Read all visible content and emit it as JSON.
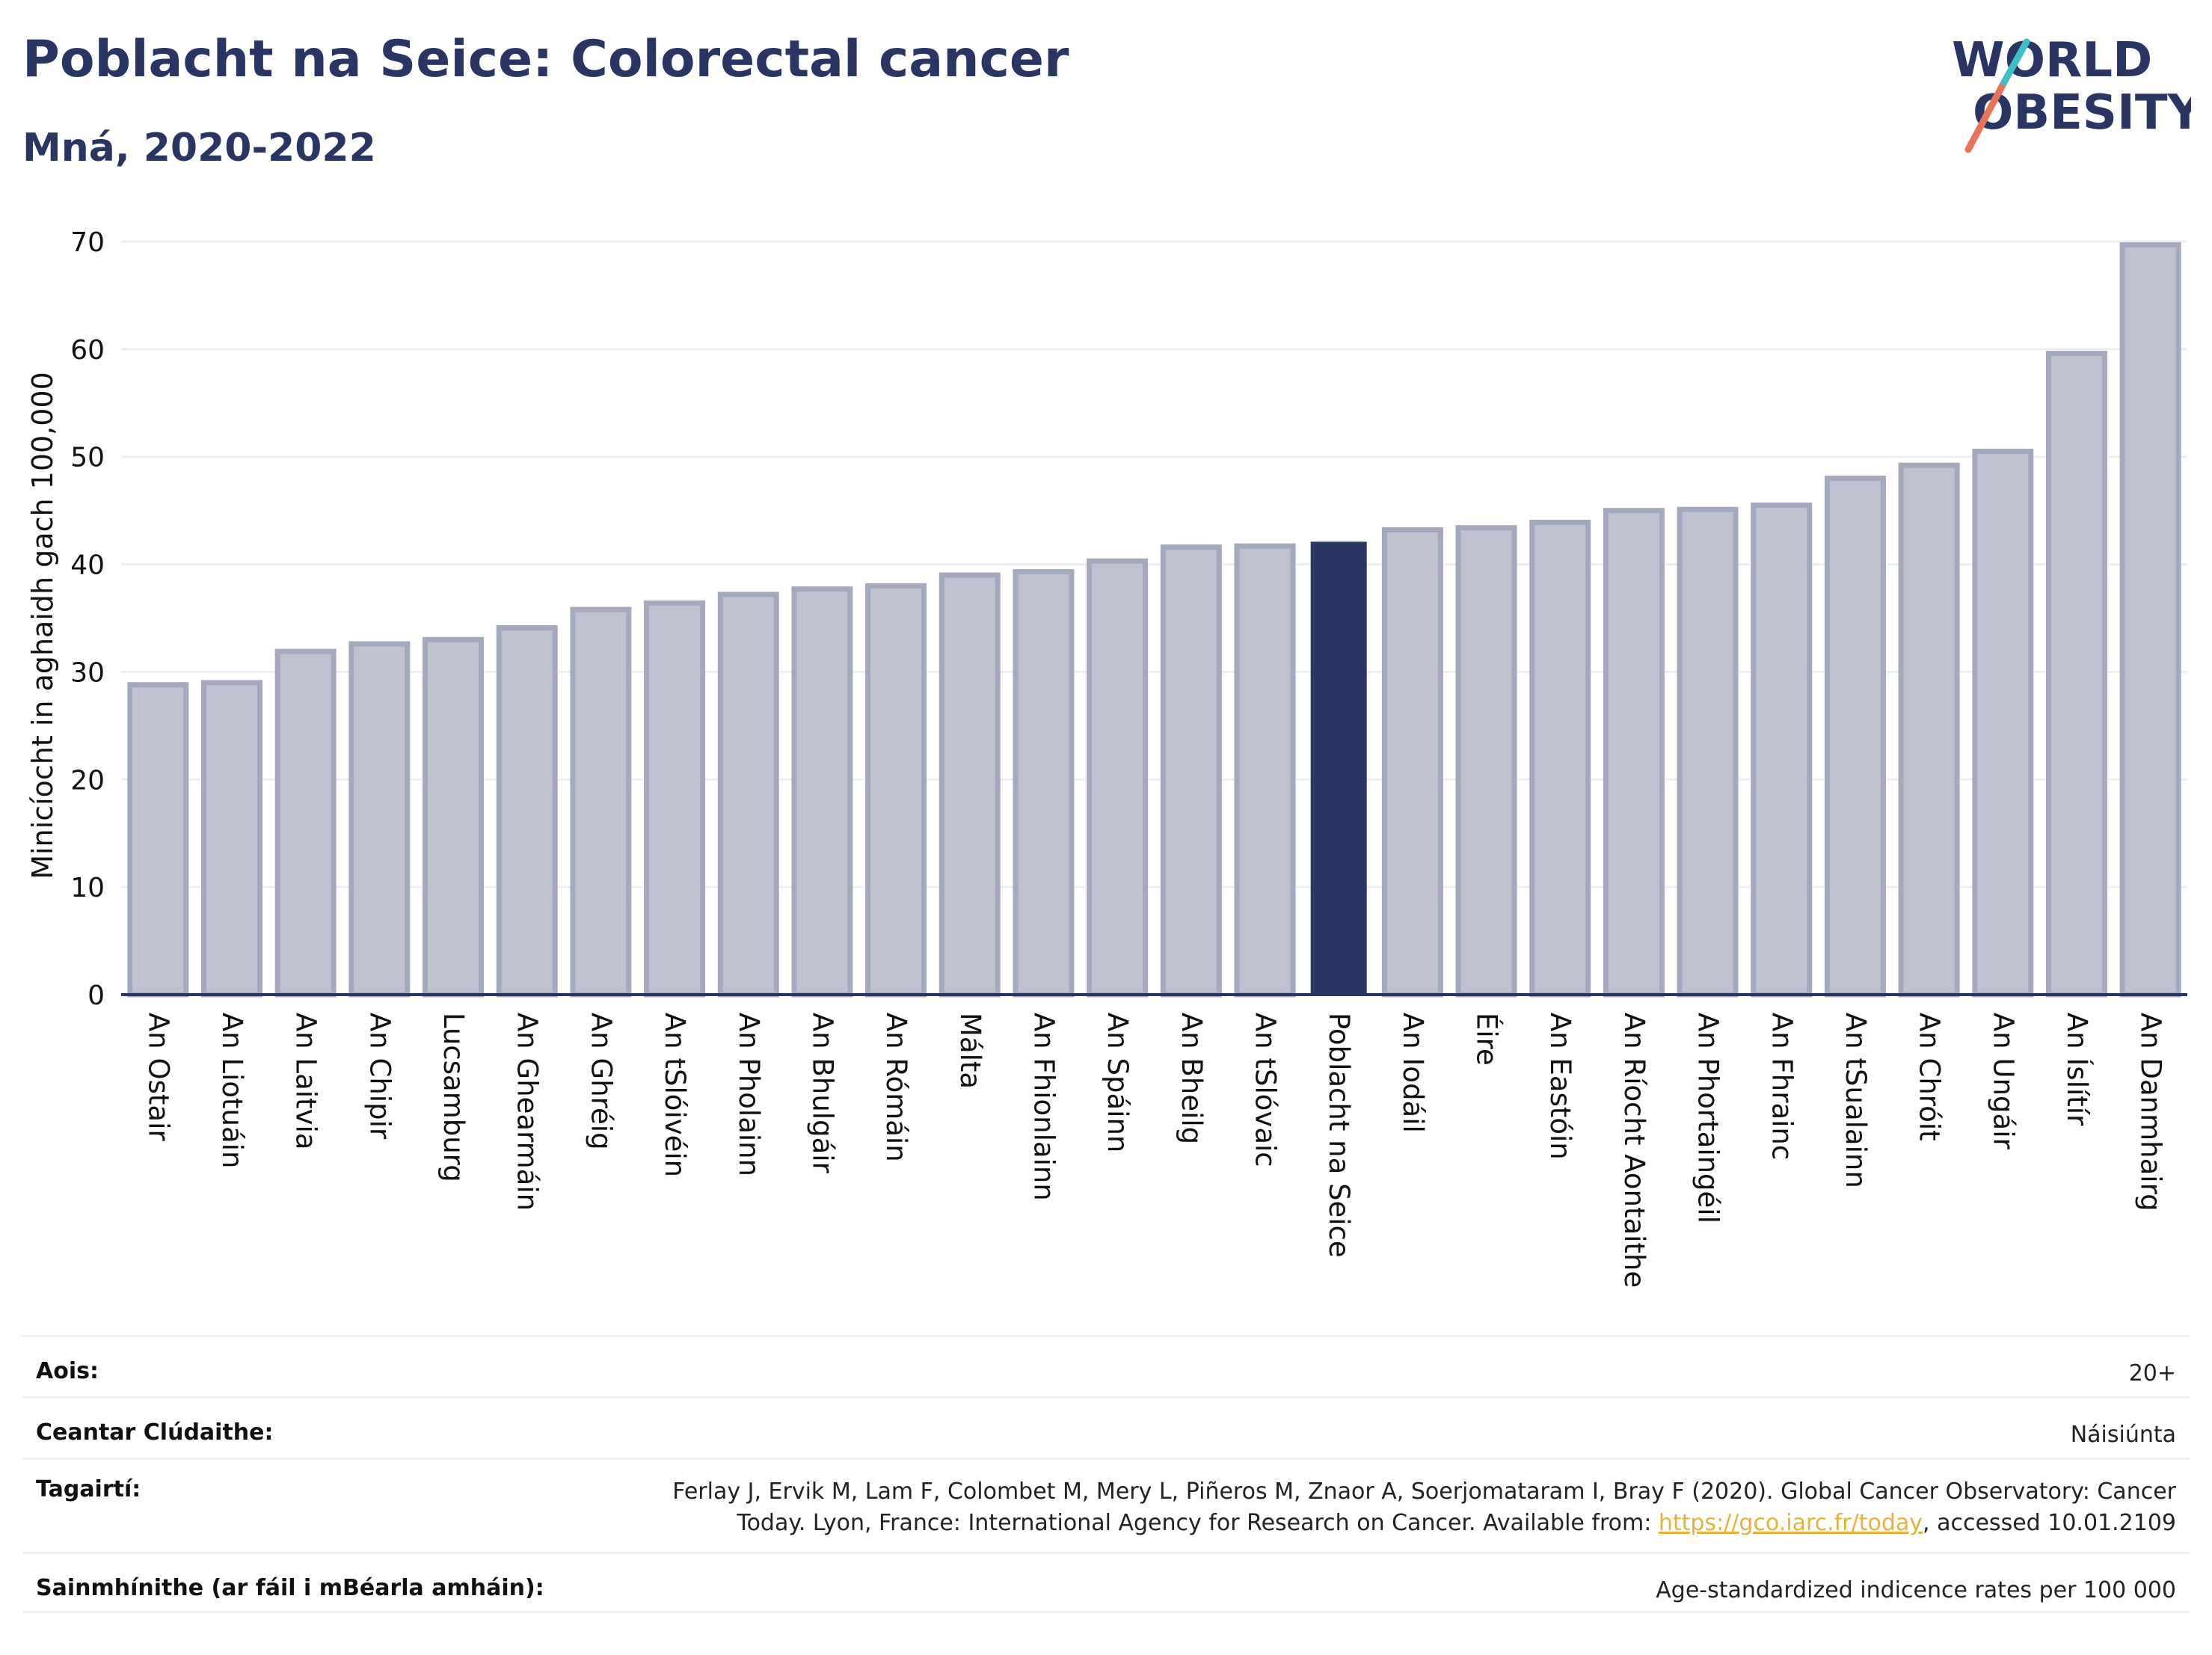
{
  "header": {
    "title": "Poblacht na Seice: Colorectal cancer",
    "subtitle": "Mná, 2020-2022"
  },
  "logo": {
    "line1": "WORLD",
    "line2": "OBESITY",
    "text_color": "#2a3563",
    "slash_colors": [
      "#e8735a",
      "#3dbfc4"
    ]
  },
  "chart_data": {
    "type": "bar",
    "ylabel": "Minicíocht in aghaidh gach 100,000",
    "ylim": [
      0,
      70
    ],
    "yticks": [
      0,
      10,
      20,
      30,
      40,
      50,
      60,
      70
    ],
    "grid": true,
    "highlight": "Poblacht na Seice",
    "colors": {
      "bar": "#bfc3d1",
      "bar_border": "#a4a9bd",
      "highlight": "#2a3563",
      "grid": "#eceef2",
      "axis": "#2a3563"
    },
    "categories": [
      "An Ostair",
      "An Liotuáin",
      "An Laitvia",
      "An Chipir",
      "Lucsamburg",
      "An Ghearmáin",
      "An Ghréig",
      "An tSlóivéin",
      "An Pholainn",
      "An Bhulgáir",
      "An Rómáin",
      "Málta",
      "An Fhionlainn",
      "An Spáinn",
      "An Bheilg",
      "An tSlóvaic",
      "Poblacht na Seice",
      "An Iodáil",
      "Éire",
      "An Eastóin",
      "An Ríocht Aontaithe",
      "An Phortaingéil",
      "An Fhrainc",
      "An tSualainn",
      "An Chróit",
      "An Ungáir",
      "An Íslítír",
      "An Danmhairg"
    ],
    "values": [
      28.8,
      29.0,
      31.9,
      32.6,
      33.0,
      34.1,
      35.8,
      36.4,
      37.2,
      37.7,
      38.0,
      39.0,
      39.3,
      40.3,
      41.6,
      41.7,
      42.1,
      43.2,
      43.4,
      43.9,
      45.0,
      45.1,
      45.5,
      48.0,
      49.2,
      50.5,
      59.6,
      69.7
    ]
  },
  "info": {
    "age_label": "Aois:",
    "age_value": "20+",
    "area_label": "Ceantar Clúdaithe:",
    "area_value": "Náisiúnta",
    "ref_label": "Tagairtí:",
    "ref_line1": "Ferlay J, Ervik M, Lam F, Colombet M, Mery L, Piñeros M, Znaor A, Soerjomataram I, Bray F (2020). Global Cancer Observatory: Cancer",
    "ref_line2_pre": "Today. Lyon, France: International Agency for Research on Cancer. Available from: ",
    "ref_link": "https://gco.iarc.fr/today",
    "ref_line2_post": ", accessed 10.01.2109",
    "def_label": "Sainmhínithe (ar fáil i mBéarla amháin):",
    "def_value": "Age-standardized indicence rates per 100 000"
  }
}
